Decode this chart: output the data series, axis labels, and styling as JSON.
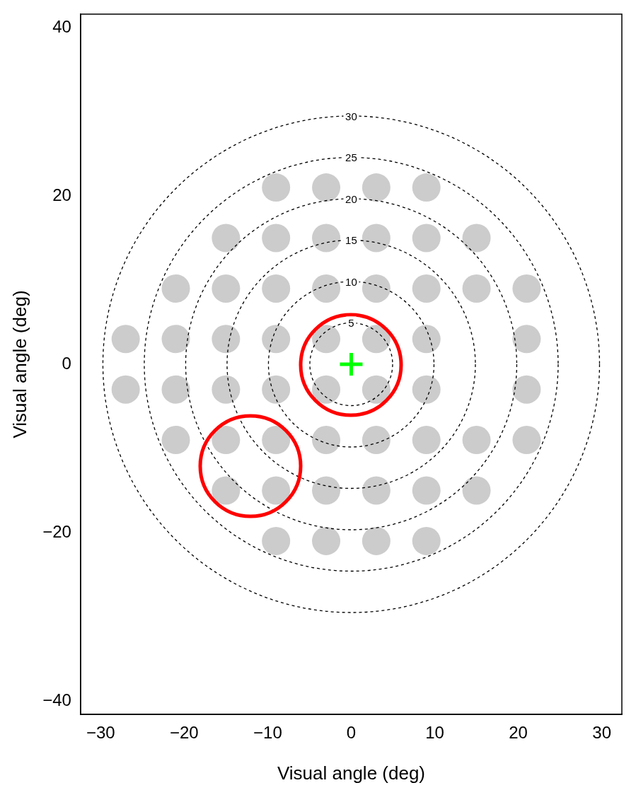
{
  "chart_data": {
    "type": "scatter",
    "xlabel": "Visual angle (deg)",
    "ylabel": "Visual angle (deg)",
    "xlim": [
      -32.4,
      32.4
    ],
    "ylim": [
      -41.6,
      41.6
    ],
    "xticks": [
      -30,
      -20,
      -10,
      0,
      10,
      20,
      30
    ],
    "yticks": [
      -40,
      -20,
      0,
      20,
      40
    ],
    "grid": false,
    "legend": false,
    "annotations": [
      "5",
      "10",
      "15",
      "20",
      "25",
      "30"
    ],
    "series": [
      {
        "color": "#cccccc",
        "marker": "circle",
        "x": [
          -9,
          -3,
          3,
          9,
          -15,
          -9,
          -3,
          3,
          9,
          15,
          -21,
          -15,
          -9,
          -3,
          3,
          9,
          15,
          21,
          -27,
          -21,
          -15,
          -9,
          -3,
          3,
          9,
          21,
          -27,
          -21,
          -15,
          -9,
          -3,
          3,
          9,
          21,
          -21,
          -15,
          -9,
          -3,
          3,
          9,
          15,
          21,
          -15,
          -9,
          -3,
          3,
          9,
          15,
          -9,
          -3,
          3,
          9
        ],
        "values": [
          21,
          21,
          21,
          21,
          15,
          15,
          15,
          15,
          15,
          15,
          9,
          9,
          9,
          9,
          9,
          9,
          9,
          9,
          3,
          3,
          3,
          3,
          3,
          3,
          3,
          3,
          -3,
          -3,
          -3,
          -3,
          -3,
          -3,
          -3,
          -3,
          -9,
          -9,
          -9,
          -9,
          -9,
          -9,
          -9,
          -9,
          -15,
          -15,
          -15,
          -15,
          -15,
          -15,
          -21,
          -21,
          -21,
          -21
        ]
      },
      {
        "color": "#00ff00",
        "marker": "cross",
        "x": [
          0
        ],
        "values": [
          0
        ]
      }
    ]
  }
}
